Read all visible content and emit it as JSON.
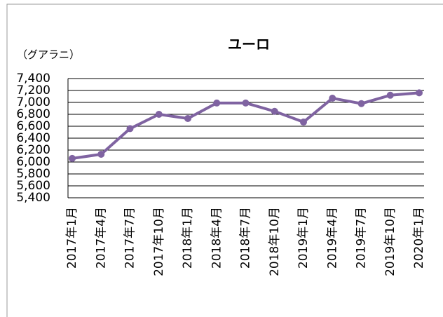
{
  "chart_data": {
    "type": "line",
    "title": "ユーロ",
    "y_label": "（グアラニ）",
    "categories": [
      "2017年1月",
      "2017年4月",
      "2017年7月",
      "2017年10月",
      "2018年1月",
      "2018年4月",
      "2018年7月",
      "2018年10月",
      "2019年1月",
      "2019年4月",
      "2019年7月",
      "2019年10月",
      "2020年1月"
    ],
    "series": [
      {
        "name": "ユーロ",
        "color": "#7f63a1",
        "values": [
          6060,
          6130,
          6560,
          6800,
          6730,
          6990,
          6990,
          6850,
          6670,
          7070,
          6980,
          7120,
          7160
        ]
      }
    ],
    "ylim": [
      5400,
      7400
    ],
    "yticks": [
      {
        "value": 5400,
        "label": "5,400"
      },
      {
        "value": 5600,
        "label": "5,600"
      },
      {
        "value": 5800,
        "label": "5,800"
      },
      {
        "value": 6000,
        "label": "6,000"
      },
      {
        "value": 6200,
        "label": "6,200"
      },
      {
        "value": 6400,
        "label": "6,400"
      },
      {
        "value": 6600,
        "label": "6,600"
      },
      {
        "value": 6800,
        "label": "6,800"
      },
      {
        "value": 7000,
        "label": "7,000"
      },
      {
        "value": 7200,
        "label": "7,200"
      },
      {
        "value": 7400,
        "label": "7,400"
      }
    ],
    "grid": true
  }
}
